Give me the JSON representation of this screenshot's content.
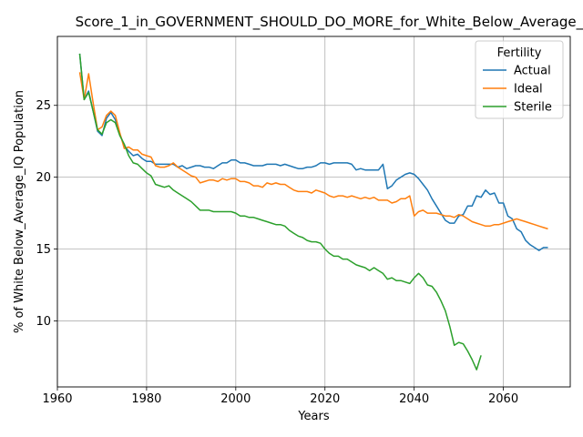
{
  "chart_data": {
    "type": "line",
    "title": "Score_1_in_GOVERNMENT_SHOULD_DO_MORE_for_White_Below_Average_IQ",
    "xlabel": "Years",
    "ylabel": "% of White Below_Average_IQ Population",
    "xlim": [
      1960,
      2075
    ],
    "ylim": [
      5.4,
      29.8
    ],
    "xticks": [
      1960,
      1980,
      2000,
      2020,
      2040,
      2060
    ],
    "yticks": [
      10,
      15,
      20,
      25
    ],
    "grid": true,
    "legend": {
      "title": "Fertility",
      "placement": "top-right"
    },
    "series": [
      {
        "name": "Actual",
        "color": "#1f77b4",
        "points": [
          [
            1965,
            28.6
          ],
          [
            1966,
            25.4
          ],
          [
            1967,
            26.0
          ],
          [
            1968,
            24.6
          ],
          [
            1969,
            23.2
          ],
          [
            1970,
            22.9
          ],
          [
            1971,
            24.1
          ],
          [
            1972,
            24.5
          ],
          [
            1973,
            24.0
          ],
          [
            1974,
            23.0
          ],
          [
            1975,
            22.2
          ],
          [
            1976,
            21.8
          ],
          [
            1977,
            21.5
          ],
          [
            1978,
            21.6
          ],
          [
            1979,
            21.3
          ],
          [
            1980,
            21.1
          ],
          [
            1981,
            21.1
          ],
          [
            1982,
            20.9
          ],
          [
            1983,
            20.9
          ],
          [
            1984,
            20.9
          ],
          [
            1985,
            20.9
          ],
          [
            1986,
            20.9
          ],
          [
            1987,
            20.7
          ],
          [
            1988,
            20.8
          ],
          [
            1989,
            20.6
          ],
          [
            1990,
            20.7
          ],
          [
            1991,
            20.8
          ],
          [
            1992,
            20.8
          ],
          [
            1993,
            20.7
          ],
          [
            1994,
            20.7
          ],
          [
            1995,
            20.6
          ],
          [
            1996,
            20.8
          ],
          [
            1997,
            21.0
          ],
          [
            1998,
            21.0
          ],
          [
            1999,
            21.2
          ],
          [
            2000,
            21.2
          ],
          [
            2001,
            21.0
          ],
          [
            2002,
            21.0
          ],
          [
            2003,
            20.9
          ],
          [
            2004,
            20.8
          ],
          [
            2005,
            20.8
          ],
          [
            2006,
            20.8
          ],
          [
            2007,
            20.9
          ],
          [
            2008,
            20.9
          ],
          [
            2009,
            20.9
          ],
          [
            2010,
            20.8
          ],
          [
            2011,
            20.9
          ],
          [
            2012,
            20.8
          ],
          [
            2013,
            20.7
          ],
          [
            2014,
            20.6
          ],
          [
            2015,
            20.6
          ],
          [
            2016,
            20.7
          ],
          [
            2017,
            20.7
          ],
          [
            2018,
            20.8
          ],
          [
            2019,
            21.0
          ],
          [
            2020,
            21.0
          ],
          [
            2021,
            20.9
          ],
          [
            2022,
            21.0
          ],
          [
            2023,
            21.0
          ],
          [
            2024,
            21.0
          ],
          [
            2025,
            21.0
          ],
          [
            2026,
            20.9
          ],
          [
            2027,
            20.5
          ],
          [
            2028,
            20.6
          ],
          [
            2029,
            20.5
          ],
          [
            2030,
            20.5
          ],
          [
            2031,
            20.5
          ],
          [
            2032,
            20.5
          ],
          [
            2033,
            20.9
          ],
          [
            2034,
            19.2
          ],
          [
            2035,
            19.4
          ],
          [
            2036,
            19.8
          ],
          [
            2037,
            20.0
          ],
          [
            2038,
            20.2
          ],
          [
            2039,
            20.3
          ],
          [
            2040,
            20.2
          ],
          [
            2041,
            19.9
          ],
          [
            2042,
            19.5
          ],
          [
            2043,
            19.1
          ],
          [
            2044,
            18.5
          ],
          [
            2045,
            18.0
          ],
          [
            2046,
            17.5
          ],
          [
            2047,
            17.0
          ],
          [
            2048,
            16.8
          ],
          [
            2049,
            16.8
          ],
          [
            2050,
            17.3
          ],
          [
            2051,
            17.4
          ],
          [
            2052,
            18.0
          ],
          [
            2053,
            18.0
          ],
          [
            2054,
            18.7
          ],
          [
            2055,
            18.6
          ],
          [
            2056,
            19.1
          ],
          [
            2057,
            18.8
          ],
          [
            2058,
            18.9
          ],
          [
            2059,
            18.2
          ],
          [
            2060,
            18.2
          ],
          [
            2061,
            17.3
          ],
          [
            2062,
            17.1
          ],
          [
            2063,
            16.4
          ],
          [
            2064,
            16.2
          ],
          [
            2065,
            15.6
          ],
          [
            2066,
            15.3
          ],
          [
            2067,
            15.1
          ],
          [
            2068,
            14.9
          ],
          [
            2069,
            15.1
          ],
          [
            2070,
            15.1
          ]
        ]
      },
      {
        "name": "Ideal",
        "color": "#ff7f0e",
        "points": [
          [
            1965,
            27.3
          ],
          [
            1966,
            25.4
          ],
          [
            1967,
            27.2
          ],
          [
            1968,
            25.2
          ],
          [
            1969,
            23.3
          ],
          [
            1970,
            23.5
          ],
          [
            1971,
            24.3
          ],
          [
            1972,
            24.6
          ],
          [
            1973,
            24.3
          ],
          [
            1974,
            23.1
          ],
          [
            1975,
            22.0
          ],
          [
            1976,
            22.1
          ],
          [
            1977,
            21.9
          ],
          [
            1978,
            21.9
          ],
          [
            1979,
            21.6
          ],
          [
            1980,
            21.5
          ],
          [
            1981,
            21.4
          ],
          [
            1982,
            20.8
          ],
          [
            1983,
            20.7
          ],
          [
            1984,
            20.7
          ],
          [
            1985,
            20.8
          ],
          [
            1986,
            21.0
          ],
          [
            1987,
            20.7
          ],
          [
            1988,
            20.5
          ],
          [
            1989,
            20.3
          ],
          [
            1990,
            20.1
          ],
          [
            1991,
            20.0
          ],
          [
            1992,
            19.6
          ],
          [
            1993,
            19.7
          ],
          [
            1994,
            19.8
          ],
          [
            1995,
            19.8
          ],
          [
            1996,
            19.7
          ],
          [
            1997,
            19.9
          ],
          [
            1998,
            19.8
          ],
          [
            1999,
            19.9
          ],
          [
            2000,
            19.9
          ],
          [
            2001,
            19.7
          ],
          [
            2002,
            19.7
          ],
          [
            2003,
            19.6
          ],
          [
            2004,
            19.4
          ],
          [
            2005,
            19.4
          ],
          [
            2006,
            19.3
          ],
          [
            2007,
            19.6
          ],
          [
            2008,
            19.5
          ],
          [
            2009,
            19.6
          ],
          [
            2010,
            19.5
          ],
          [
            2011,
            19.5
          ],
          [
            2012,
            19.3
          ],
          [
            2013,
            19.1
          ],
          [
            2014,
            19.0
          ],
          [
            2015,
            19.0
          ],
          [
            2016,
            19.0
          ],
          [
            2017,
            18.9
          ],
          [
            2018,
            19.1
          ],
          [
            2019,
            19.0
          ],
          [
            2020,
            18.9
          ],
          [
            2021,
            18.7
          ],
          [
            2022,
            18.6
          ],
          [
            2023,
            18.7
          ],
          [
            2024,
            18.7
          ],
          [
            2025,
            18.6
          ],
          [
            2026,
            18.7
          ],
          [
            2027,
            18.6
          ],
          [
            2028,
            18.5
          ],
          [
            2029,
            18.6
          ],
          [
            2030,
            18.5
          ],
          [
            2031,
            18.6
          ],
          [
            2032,
            18.4
          ],
          [
            2033,
            18.4
          ],
          [
            2034,
            18.4
          ],
          [
            2035,
            18.2
          ],
          [
            2036,
            18.3
          ],
          [
            2037,
            18.5
          ],
          [
            2038,
            18.5
          ],
          [
            2039,
            18.7
          ],
          [
            2040,
            17.3
          ],
          [
            2041,
            17.6
          ],
          [
            2042,
            17.7
          ],
          [
            2043,
            17.5
          ],
          [
            2044,
            17.5
          ],
          [
            2045,
            17.5
          ],
          [
            2046,
            17.4
          ],
          [
            2047,
            17.3
          ],
          [
            2048,
            17.3
          ],
          [
            2049,
            17.2
          ],
          [
            2050,
            17.4
          ],
          [
            2051,
            17.3
          ],
          [
            2052,
            17.1
          ],
          [
            2053,
            16.9
          ],
          [
            2054,
            16.8
          ],
          [
            2055,
            16.7
          ],
          [
            2056,
            16.6
          ],
          [
            2057,
            16.6
          ],
          [
            2058,
            16.7
          ],
          [
            2059,
            16.7
          ],
          [
            2060,
            16.8
          ],
          [
            2061,
            16.9
          ],
          [
            2062,
            17.0
          ],
          [
            2063,
            17.1
          ],
          [
            2064,
            17.0
          ],
          [
            2065,
            16.9
          ],
          [
            2066,
            16.8
          ],
          [
            2067,
            16.7
          ],
          [
            2068,
            16.6
          ],
          [
            2069,
            16.5
          ],
          [
            2070,
            16.4
          ]
        ]
      },
      {
        "name": "Sterile",
        "color": "#2ca02c",
        "points": [
          [
            1965,
            28.6
          ],
          [
            1966,
            25.4
          ],
          [
            1967,
            25.9
          ],
          [
            1968,
            24.6
          ],
          [
            1969,
            23.3
          ],
          [
            1970,
            23.0
          ],
          [
            1971,
            23.8
          ],
          [
            1972,
            24.0
          ],
          [
            1973,
            23.8
          ],
          [
            1974,
            22.9
          ],
          [
            1975,
            22.3
          ],
          [
            1976,
            21.5
          ],
          [
            1977,
            21.0
          ],
          [
            1978,
            20.9
          ],
          [
            1979,
            20.6
          ],
          [
            1980,
            20.3
          ],
          [
            1981,
            20.1
          ],
          [
            1982,
            19.5
          ],
          [
            1983,
            19.4
          ],
          [
            1984,
            19.3
          ],
          [
            1985,
            19.4
          ],
          [
            1986,
            19.1
          ],
          [
            1987,
            18.9
          ],
          [
            1988,
            18.7
          ],
          [
            1989,
            18.5
          ],
          [
            1990,
            18.3
          ],
          [
            1991,
            18.0
          ],
          [
            1992,
            17.7
          ],
          [
            1993,
            17.7
          ],
          [
            1994,
            17.7
          ],
          [
            1995,
            17.6
          ],
          [
            1996,
            17.6
          ],
          [
            1997,
            17.6
          ],
          [
            1998,
            17.6
          ],
          [
            1999,
            17.6
          ],
          [
            2000,
            17.5
          ],
          [
            2001,
            17.3
          ],
          [
            2002,
            17.3
          ],
          [
            2003,
            17.2
          ],
          [
            2004,
            17.2
          ],
          [
            2005,
            17.1
          ],
          [
            2006,
            17.0
          ],
          [
            2007,
            16.9
          ],
          [
            2008,
            16.8
          ],
          [
            2009,
            16.7
          ],
          [
            2010,
            16.7
          ],
          [
            2011,
            16.6
          ],
          [
            2012,
            16.3
          ],
          [
            2013,
            16.1
          ],
          [
            2014,
            15.9
          ],
          [
            2015,
            15.8
          ],
          [
            2016,
            15.6
          ],
          [
            2017,
            15.5
          ],
          [
            2018,
            15.5
          ],
          [
            2019,
            15.4
          ],
          [
            2020,
            15.0
          ],
          [
            2021,
            14.7
          ],
          [
            2022,
            14.5
          ],
          [
            2023,
            14.5
          ],
          [
            2024,
            14.3
          ],
          [
            2025,
            14.3
          ],
          [
            2026,
            14.1
          ],
          [
            2027,
            13.9
          ],
          [
            2028,
            13.8
          ],
          [
            2029,
            13.7
          ],
          [
            2030,
            13.5
          ],
          [
            2031,
            13.7
          ],
          [
            2032,
            13.5
          ],
          [
            2033,
            13.3
          ],
          [
            2034,
            12.9
          ],
          [
            2035,
            13.0
          ],
          [
            2036,
            12.8
          ],
          [
            2037,
            12.8
          ],
          [
            2038,
            12.7
          ],
          [
            2039,
            12.6
          ],
          [
            2040,
            13.0
          ],
          [
            2041,
            13.3
          ],
          [
            2042,
            13.0
          ],
          [
            2043,
            12.5
          ],
          [
            2044,
            12.4
          ],
          [
            2045,
            12.0
          ],
          [
            2046,
            11.4
          ],
          [
            2047,
            10.7
          ],
          [
            2048,
            9.6
          ],
          [
            2049,
            8.3
          ],
          [
            2050,
            8.5
          ],
          [
            2051,
            8.4
          ],
          [
            2052,
            7.9
          ],
          [
            2053,
            7.3
          ],
          [
            2054,
            6.6
          ],
          [
            2055,
            7.6
          ]
        ]
      }
    ]
  }
}
